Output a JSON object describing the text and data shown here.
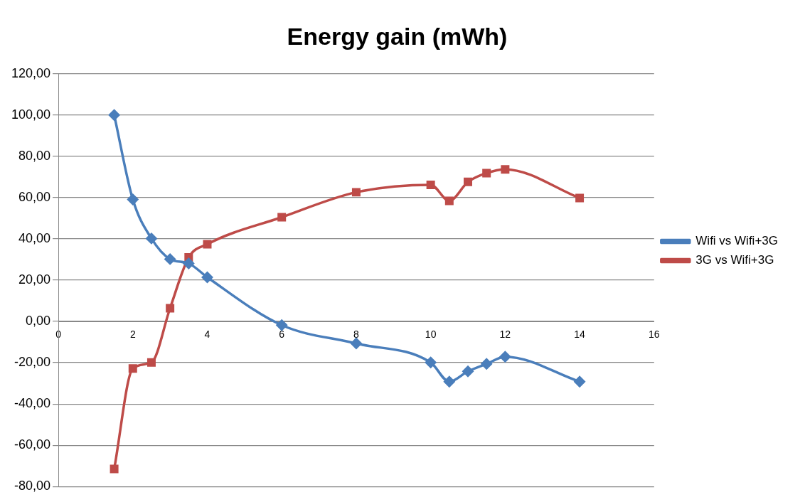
{
  "chart_data": {
    "type": "line",
    "title": "Energy gain (mWh)",
    "x": [
      1.5,
      2,
      2.5,
      3,
      3.5,
      4,
      6,
      8,
      10,
      10.5,
      11,
      11.5,
      12,
      14
    ],
    "series": [
      {
        "name": "Wifi vs Wifi+3G",
        "color": "#4a7ebb",
        "marker": "diamond",
        "values": [
          100,
          59.1,
          40.2,
          30.2,
          28.1,
          21.4,
          -1.8,
          -10.7,
          -19.9,
          -29.2,
          -24.2,
          -20.6,
          -17.1,
          -29.2
        ]
      },
      {
        "name": "3G vs Wifi+3G",
        "color": "#be4b48",
        "marker": "square",
        "values": [
          -71.5,
          -22.8,
          -19.9,
          6.4,
          31,
          37.4,
          50.5,
          62.6,
          66.2,
          58.4,
          67.6,
          71.9,
          73.7,
          59.8
        ]
      }
    ],
    "xlim": [
      0,
      16
    ],
    "xticks": [
      0,
      2,
      4,
      6,
      8,
      10,
      12,
      14,
      16
    ],
    "ylim": [
      -80,
      120
    ],
    "yticks": [
      {
        "value": -80,
        "label": "-80,00"
      },
      {
        "value": -60,
        "label": "-60,00"
      },
      {
        "value": -40,
        "label": "-40,00"
      },
      {
        "value": -20,
        "label": "-20,00"
      },
      {
        "value": 0,
        "label": "0,00"
      },
      {
        "value": 20,
        "label": "20,00"
      },
      {
        "value": 40,
        "label": "40,00"
      },
      {
        "value": 60,
        "label": "60,00"
      },
      {
        "value": 80,
        "label": "80,00"
      },
      {
        "value": 100,
        "label": "100,00"
      },
      {
        "value": 120,
        "label": "120,00"
      }
    ],
    "grid": "y",
    "legend": "right",
    "line_style": "solid"
  }
}
